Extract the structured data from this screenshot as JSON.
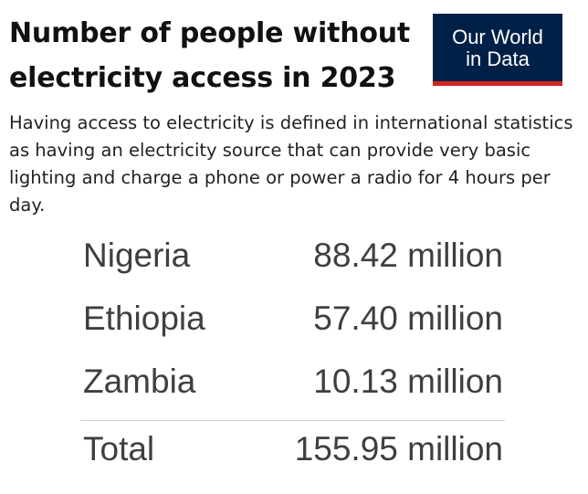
{
  "title": "Number of people without electricity access in 2023",
  "logo": {
    "line1": "Our World",
    "line2": "in Data",
    "background": "#002147",
    "accent": "#ce261e"
  },
  "subtitle": "Having access to electricity is defined in international statistics as having an electricity source that can provide very basic lighting and charge a phone or power a radio for 4 hours per day.",
  "chart_data": {
    "type": "table",
    "columns": [
      "",
      ""
    ],
    "rows": [
      {
        "country": "Nigeria",
        "value_label": "88.42 million",
        "value": 88.42
      },
      {
        "country": "Ethiopia",
        "value_label": "57.40 million",
        "value": 57.4
      },
      {
        "country": "Zambia",
        "value_label": "10.13 million",
        "value": 10.13
      }
    ],
    "total": {
      "label": "Total",
      "value_label": "155.95 million",
      "value": 155.95
    },
    "unit": "million"
  }
}
